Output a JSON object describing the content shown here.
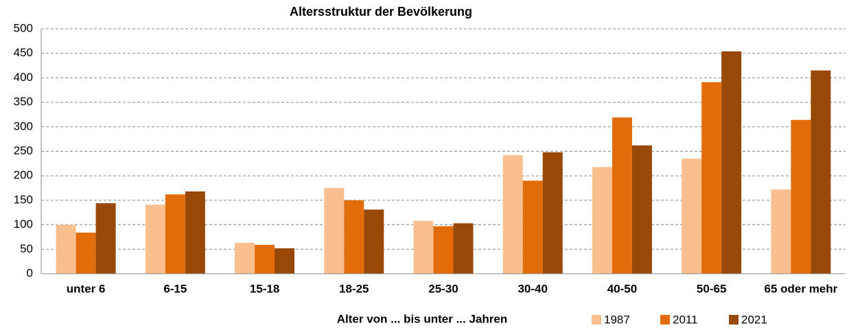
{
  "chart_data": {
    "type": "bar",
    "title": "Altersstruktur der Bevölkerung",
    "x_label": "Alter von ... bis unter ... Jahren",
    "categories": [
      "unter 6",
      "6-15",
      "15-18",
      "18-25",
      "25-30",
      "30-40",
      "40-50",
      "50-65",
      "65 oder mehr"
    ],
    "series": [
      {
        "name": "1987",
        "color": "#f9bf8f",
        "values": [
          100,
          141,
          63,
          175,
          108,
          242,
          218,
          235,
          172
        ]
      },
      {
        "name": "2011",
        "color": "#e36c0a",
        "values": [
          84,
          162,
          59,
          150,
          97,
          190,
          319,
          391,
          314
        ]
      },
      {
        "name": "2021",
        "color": "#984807",
        "values": [
          144,
          168,
          52,
          131,
          103,
          248,
          262,
          454,
          415
        ]
      }
    ],
    "ylim": [
      0,
      500
    ],
    "yticks": [
      0,
      50,
      100,
      150,
      200,
      250,
      300,
      350,
      400,
      450,
      500
    ],
    "grid": true
  }
}
